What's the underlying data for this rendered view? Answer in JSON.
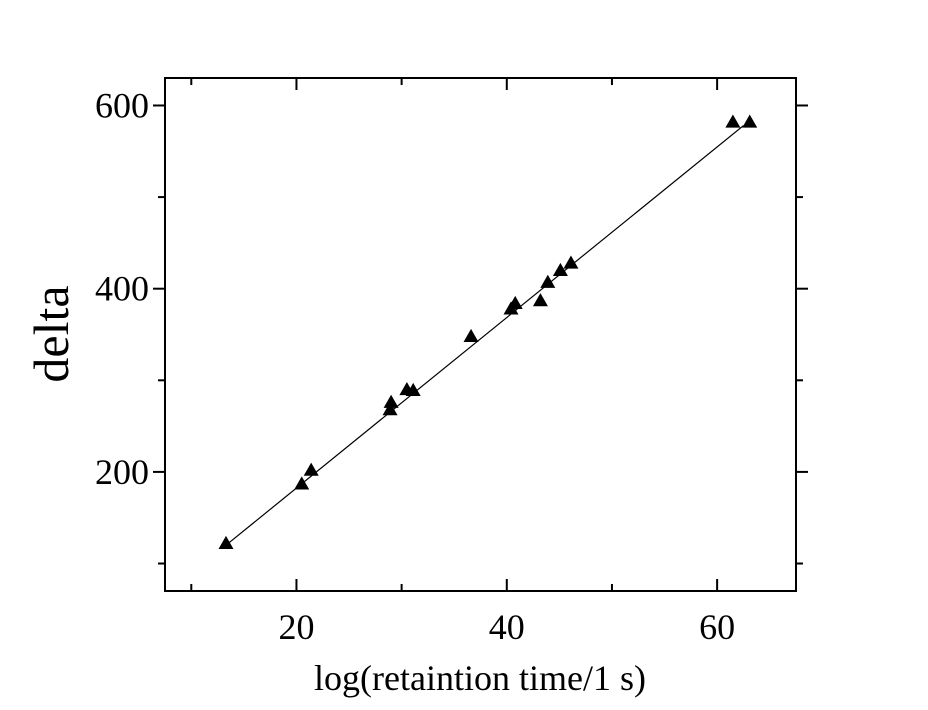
{
  "chart_data": {
    "type": "scatter",
    "title": "",
    "xlabel": "log(retaintion time/1 s)",
    "ylabel": "delta",
    "xlim": [
      7.5,
      67.5
    ],
    "ylim": [
      70,
      630
    ],
    "x_ticks": [
      20,
      40,
      60
    ],
    "x_tick_labels": [
      "20",
      "40",
      "60"
    ],
    "x_minor_ticks": [
      10,
      30,
      50
    ],
    "y_ticks": [
      200,
      400,
      600
    ],
    "y_tick_labels": [
      "200",
      "400",
      "600"
    ],
    "y_minor_ticks": [
      100,
      300,
      500
    ],
    "grid": false,
    "legend": "none",
    "marker": "triangle",
    "marker_color": "#000000",
    "series": [
      {
        "points": [
          [
            13.3,
            122
          ],
          [
            20.5,
            187
          ],
          [
            21.4,
            202
          ],
          [
            28.9,
            268
          ],
          [
            29.0,
            276
          ],
          [
            30.5,
            290
          ],
          [
            31.1,
            289
          ],
          [
            36.6,
            348
          ],
          [
            40.4,
            378
          ],
          [
            40.8,
            384
          ],
          [
            43.2,
            387
          ],
          [
            43.9,
            407
          ],
          [
            45.1,
            420
          ],
          [
            46.1,
            428
          ],
          [
            61.5,
            582
          ],
          [
            63.1,
            582
          ]
        ]
      }
    ],
    "fit_line": {
      "x": [
        13.3,
        62.5
      ],
      "y": [
        120,
        578
      ]
    }
  }
}
